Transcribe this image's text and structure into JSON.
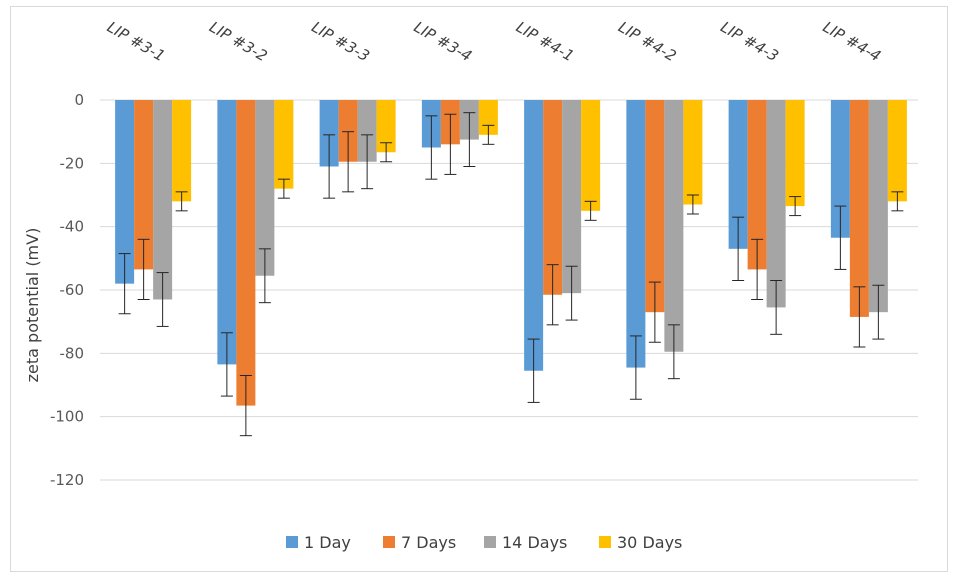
{
  "chart_data": {
    "type": "bar",
    "categories": [
      "LIP #3-1",
      "LIP #3-2",
      "LIP #3-3",
      "LIP #3-4",
      "LIP #4-1",
      "LIP #4-2",
      "LIP #4-3",
      "LIP #4-4"
    ],
    "series": [
      {
        "name": "1 Day",
        "color": "#5b9bd5",
        "values": [
          -58,
          -83.5,
          -21,
          -15,
          -85.5,
          -84.5,
          -47,
          -43.5
        ],
        "errors": [
          9.5,
          10,
          10,
          10,
          10,
          10,
          10,
          10
        ]
      },
      {
        "name": "7 Days",
        "color": "#ed7d31",
        "values": [
          -53.5,
          -96.5,
          -19.5,
          -14,
          -61.5,
          -67,
          -53.5,
          -68.5
        ],
        "errors": [
          9.5,
          9.5,
          9.5,
          9.5,
          9.5,
          9.5,
          9.5,
          9.5
        ]
      },
      {
        "name": "14 Days",
        "color": "#a5a5a5",
        "values": [
          -63,
          -55.5,
          -19.5,
          -12.5,
          -61,
          -79.5,
          -65.5,
          -67
        ]
      },
      {
        "name": "30 Days",
        "color": "#ffc000",
        "values": [
          -32,
          -28,
          -16.5,
          -11,
          -35,
          -33,
          -33.5,
          -32
        ]
      }
    ],
    "error_14": [
      8.5,
      8.5,
      8.5,
      8.5,
      8.5,
      8.5,
      8.5,
      8.5
    ],
    "error_30": [
      3,
      3,
      3,
      3,
      3,
      3,
      3,
      3
    ],
    "ylabel": "zeta potential (mV)",
    "xlabel": "",
    "title": "",
    "ylim": [
      -120,
      0
    ],
    "yticks": [
      0,
      -20,
      -40,
      -60,
      -80,
      -100,
      -120
    ],
    "grid": true,
    "legend_position": "bottom",
    "category_axis_position": "top"
  }
}
